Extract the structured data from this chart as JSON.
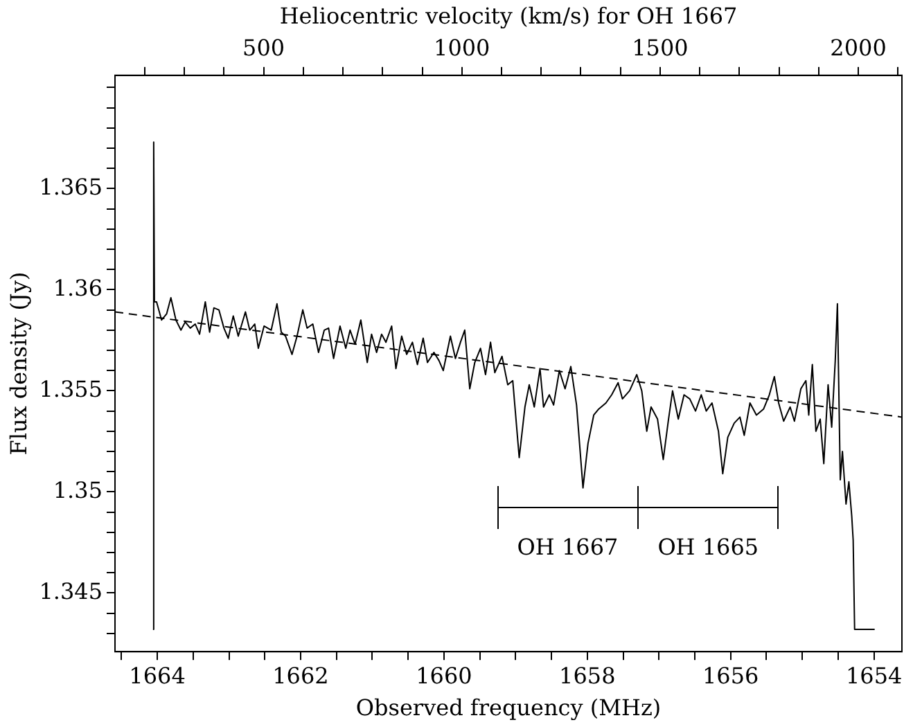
{
  "chart_data": {
    "type": "line",
    "xlabel": "Observed frequency (MHz)",
    "ylabel": "Flux density (Jy)",
    "x2label": "Heliocentric velocity (km/s) for OH 1667",
    "xlim": [
      1664.59,
      1653.61
    ],
    "xticks": [
      {
        "value": 1664.5,
        "label": null
      },
      1664,
      {
        "value": 1663.5,
        "label": null
      },
      {
        "value": 1663,
        "label": null
      },
      {
        "value": 1662.5,
        "label": null
      },
      1662,
      {
        "value": 1661.5,
        "label": null
      },
      {
        "value": 1661,
        "label": null
      },
      {
        "value": 1660.5,
        "label": null
      },
      1660,
      {
        "value": 1659.5,
        "label": null
      },
      {
        "value": 1659,
        "label": null
      },
      {
        "value": 1658.5,
        "label": null
      },
      1658,
      {
        "value": 1657.5,
        "label": null
      },
      {
        "value": 1657,
        "label": null
      },
      {
        "value": 1656.5,
        "label": null
      },
      1656,
      {
        "value": 1655.5,
        "label": null
      },
      {
        "value": 1655,
        "label": null
      },
      {
        "value": 1654.5,
        "label": null
      },
      1654
    ],
    "x2lim": [
      125,
      2110
    ],
    "x2ticks": [
      {
        "value": 200,
        "label": null
      },
      {
        "value": 300,
        "label": null
      },
      {
        "value": 400,
        "label": null
      },
      500,
      {
        "value": 600,
        "label": null
      },
      {
        "value": 700,
        "label": null
      },
      {
        "value": 800,
        "label": null
      },
      {
        "value": 900,
        "label": null
      },
      1000,
      {
        "value": 1100,
        "label": null
      },
      {
        "value": 1200,
        "label": null
      },
      {
        "value": 1300,
        "label": null
      },
      {
        "value": 1400,
        "label": null
      },
      1500,
      {
        "value": 1600,
        "label": null
      },
      {
        "value": 1700,
        "label": null
      },
      {
        "value": 1800,
        "label": null
      },
      {
        "value": 1900,
        "label": null
      },
      2000,
      {
        "value": 2100,
        "label": null
      }
    ],
    "ylim": [
      1.3421,
      1.3706
    ],
    "yticks": [
      {
        "value": 1.343,
        "label": null
      },
      {
        "value": 1.344,
        "label": null
      },
      1.345,
      {
        "value": 1.346,
        "label": null
      },
      {
        "value": 1.347,
        "label": null
      },
      {
        "value": 1.348,
        "label": null
      },
      {
        "value": 1.349,
        "label": null
      },
      1.35,
      {
        "value": 1.351,
        "label": null
      },
      {
        "value": 1.352,
        "label": null
      },
      {
        "value": 1.353,
        "label": null
      },
      {
        "value": 1.354,
        "label": null
      },
      1.355,
      {
        "value": 1.356,
        "label": null
      },
      {
        "value": 1.357,
        "label": null
      },
      {
        "value": 1.358,
        "label": null
      },
      {
        "value": 1.359,
        "label": null
      },
      1.36,
      {
        "value": 1.361,
        "label": null
      },
      {
        "value": 1.362,
        "label": null
      },
      {
        "value": 1.363,
        "label": null
      },
      {
        "value": 1.364,
        "label": null
      },
      1.365,
      {
        "value": 1.366,
        "label": null
      },
      {
        "value": 1.367,
        "label": null
      },
      {
        "value": 1.368,
        "label": null
      },
      {
        "value": 1.369,
        "label": null
      },
      {
        "value": 1.37,
        "label": null
      }
    ],
    "marker": "none",
    "series": [
      {
        "color": "#000000",
        "line_style": "solid",
        "x": [
          1664.06,
          1664.05,
          1664.04,
          1664.01,
          1663.94,
          1663.87,
          1663.81,
          1663.74,
          1663.67,
          1663.61,
          1663.54,
          1663.47,
          1663.41,
          1663.33,
          1663.27,
          1663.21,
          1663.14,
          1663.07,
          1663.01,
          1662.94,
          1662.87,
          1662.77,
          1662.71,
          1662.64,
          1662.59,
          1662.51,
          1662.41,
          1662.33,
          1662.27,
          1662.21,
          1662.12,
          1662.05,
          1661.97,
          1661.91,
          1661.83,
          1661.75,
          1661.67,
          1661.61,
          1661.54,
          1661.45,
          1661.37,
          1661.31,
          1661.24,
          1661.16,
          1661.07,
          1661.01,
          1660.94,
          1660.87,
          1660.81,
          1660.73,
          1660.67,
          1660.59,
          1660.52,
          1660.44,
          1660.37,
          1660.29,
          1660.23,
          1660.14,
          1660.07,
          1660.01,
          1659.91,
          1659.84,
          1659.77,
          1659.71,
          1659.64,
          1659.57,
          1659.49,
          1659.42,
          1659.35,
          1659.29,
          1659.19,
          1659.11,
          1659.04,
          1658.95,
          1658.87,
          1658.81,
          1658.74,
          1658.66,
          1658.61,
          1658.53,
          1658.47,
          1658.39,
          1658.31,
          1658.23,
          1658.15,
          1658.06,
          1657.99,
          1657.91,
          1657.84,
          1657.74,
          1657.66,
          1657.57,
          1657.51,
          1657.41,
          1657.31,
          1657.24,
          1657.17,
          1657.11,
          1657.02,
          1656.94,
          1656.87,
          1656.81,
          1656.73,
          1656.65,
          1656.57,
          1656.49,
          1656.41,
          1656.34,
          1656.26,
          1656.17,
          1656.11,
          1656.04,
          1655.95,
          1655.87,
          1655.81,
          1655.73,
          1655.64,
          1655.54,
          1655.46,
          1655.39,
          1655.33,
          1655.26,
          1655.17,
          1655.11,
          1655.02,
          1654.95,
          1654.91,
          1654.86,
          1654.81,
          1654.75,
          1654.7,
          1654.64,
          1654.59,
          1654.54,
          1654.51,
          1654.47,
          1654.44,
          1654.39,
          1654.35,
          1654.31,
          1654.29,
          1654.27,
          1653.99
        ],
        "values": [
          1.3432,
          1.3673,
          1.3594,
          1.3594,
          1.3585,
          1.3588,
          1.3596,
          1.3585,
          1.358,
          1.3584,
          1.3581,
          1.3583,
          1.3578,
          1.3594,
          1.3579,
          1.3591,
          1.359,
          1.3581,
          1.3576,
          1.3587,
          1.3577,
          1.3589,
          1.358,
          1.3583,
          1.3571,
          1.3582,
          1.358,
          1.3593,
          1.3579,
          1.3577,
          1.3568,
          1.3577,
          1.359,
          1.3581,
          1.3583,
          1.3569,
          1.358,
          1.3581,
          1.3566,
          1.3582,
          1.3571,
          1.358,
          1.3573,
          1.3585,
          1.3564,
          1.3578,
          1.3569,
          1.3578,
          1.3574,
          1.3582,
          1.3561,
          1.3577,
          1.3568,
          1.3574,
          1.3563,
          1.3576,
          1.3564,
          1.3569,
          1.3565,
          1.356,
          1.3577,
          1.3566,
          1.3574,
          1.358,
          1.3551,
          1.3564,
          1.3571,
          1.3558,
          1.3574,
          1.3559,
          1.3567,
          1.3553,
          1.3555,
          1.3517,
          1.3542,
          1.3553,
          1.3542,
          1.3561,
          1.3542,
          1.3548,
          1.3543,
          1.356,
          1.3551,
          1.3562,
          1.3543,
          1.3502,
          1.3524,
          1.3538,
          1.3541,
          1.3544,
          1.3548,
          1.3554,
          1.3546,
          1.355,
          1.3558,
          1.355,
          1.353,
          1.3542,
          1.3536,
          1.3516,
          1.3535,
          1.355,
          1.3536,
          1.3548,
          1.3546,
          1.354,
          1.3548,
          1.354,
          1.3544,
          1.353,
          1.3509,
          1.3527,
          1.3534,
          1.3537,
          1.3528,
          1.3544,
          1.3538,
          1.3541,
          1.3548,
          1.3557,
          1.3544,
          1.3535,
          1.3542,
          1.3535,
          1.3551,
          1.3555,
          1.3538,
          1.3563,
          1.353,
          1.3536,
          1.3514,
          1.3553,
          1.3532,
          1.3565,
          1.3593,
          1.3506,
          1.352,
          1.3494,
          1.3505,
          1.3488,
          1.3476,
          1.3432,
          1.3432
        ]
      },
      {
        "type": "line",
        "color": "#000000",
        "line_style": "dashed",
        "x": [
          1664.59,
          1653.61
        ],
        "values": [
          1.3589,
          1.3537
        ]
      }
    ],
    "annotations": [
      "OH 1667",
      "OH 1665"
    ]
  }
}
